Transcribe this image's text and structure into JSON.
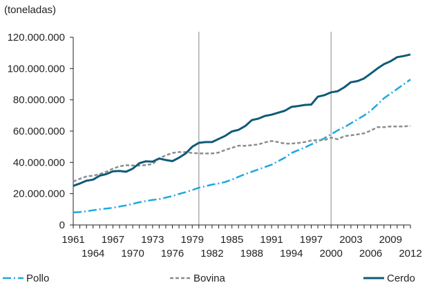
{
  "chart_data": {
    "type": "line",
    "unit_label": "(toneladas)",
    "years": [
      1961,
      1962,
      1963,
      1964,
      1965,
      1966,
      1967,
      1968,
      1969,
      1970,
      1971,
      1972,
      1973,
      1974,
      1975,
      1976,
      1977,
      1978,
      1979,
      1980,
      1981,
      1982,
      1983,
      1984,
      1985,
      1986,
      1987,
      1988,
      1989,
      1990,
      1991,
      1992,
      1993,
      1994,
      1995,
      1996,
      1997,
      1998,
      1999,
      2000,
      2001,
      2002,
      2003,
      2004,
      2005,
      2006,
      2007,
      2008,
      2009,
      2010,
      2011,
      2012
    ],
    "x_tick_labels": [
      "1961",
      "1964",
      "1967",
      "1970",
      "1973",
      "1976",
      "1979",
      "1982",
      "1985",
      "1988",
      "1991",
      "1994",
      "1997",
      "2000",
      "2003",
      "2006",
      "2009",
      "2012"
    ],
    "y_tick_labels": [
      "0",
      "20.000.000",
      "40.000.000",
      "60.000.000",
      "80.000.000",
      "100.000.000",
      "120.000.000"
    ],
    "ylim": [
      0,
      120000000
    ],
    "vertical_markers": [
      1980,
      2000
    ],
    "series": [
      {
        "name": "Pollo",
        "color": "#1ba7e0",
        "style": "dashdot",
        "values": [
          8000000,
          8300000,
          8800000,
          9400000,
          10000000,
          10500000,
          11000000,
          11800000,
          12500000,
          13500000,
          14500000,
          15300000,
          16000000,
          16500000,
          17500000,
          18500000,
          19800000,
          21000000,
          22300000,
          23800000,
          24800000,
          25800000,
          26500000,
          27500000,
          29000000,
          30800000,
          32500000,
          34000000,
          35500000,
          37000000,
          38500000,
          40800000,
          43000000,
          46000000,
          47800000,
          49500000,
          51500000,
          53300000,
          55500000,
          58000000,
          60500000,
          62500000,
          65000000,
          67500000,
          70000000,
          73000000,
          77000000,
          81000000,
          84000000,
          87000000,
          90000000,
          93000000
        ]
      },
      {
        "name": "Bovina",
        "color": "#8a8c8e",
        "style": "dashed",
        "values": [
          27800000,
          29500000,
          31000000,
          31500000,
          32500000,
          34000000,
          36000000,
          37500000,
          38200000,
          38000000,
          38000000,
          38300000,
          39000000,
          42500000,
          44500000,
          46000000,
          46600000,
          46600000,
          46000000,
          45800000,
          45700000,
          45700000,
          46300000,
          48000000,
          49300000,
          50700000,
          50600000,
          51000000,
          51500000,
          52800000,
          53700000,
          53000000,
          52000000,
          52000000,
          52400000,
          53000000,
          54000000,
          54300000,
          54200000,
          55900000,
          54800000,
          56800000,
          57300000,
          57900000,
          58600000,
          60300000,
          62500000,
          62500000,
          63000000,
          63000000,
          63000000,
          63300000
        ]
      },
      {
        "name": "Cerdo",
        "color": "#0e5a78",
        "style": "solid",
        "values": [
          25000000,
          26500000,
          28300000,
          29000000,
          31500000,
          32500000,
          34300000,
          34500000,
          34000000,
          36000000,
          39500000,
          40700000,
          40500000,
          42500000,
          41500000,
          40800000,
          43000000,
          45700000,
          50000000,
          52500000,
          53000000,
          53000000,
          55000000,
          57000000,
          59800000,
          60800000,
          63200000,
          67000000,
          68000000,
          69700000,
          70500000,
          71800000,
          73000000,
          75500000,
          76000000,
          76700000,
          77000000,
          82000000,
          83000000,
          84800000,
          85500000,
          88000000,
          91300000,
          92000000,
          93700000,
          96800000,
          100000000,
          102800000,
          104700000,
          107300000,
          108000000,
          109000000
        ]
      }
    ]
  }
}
